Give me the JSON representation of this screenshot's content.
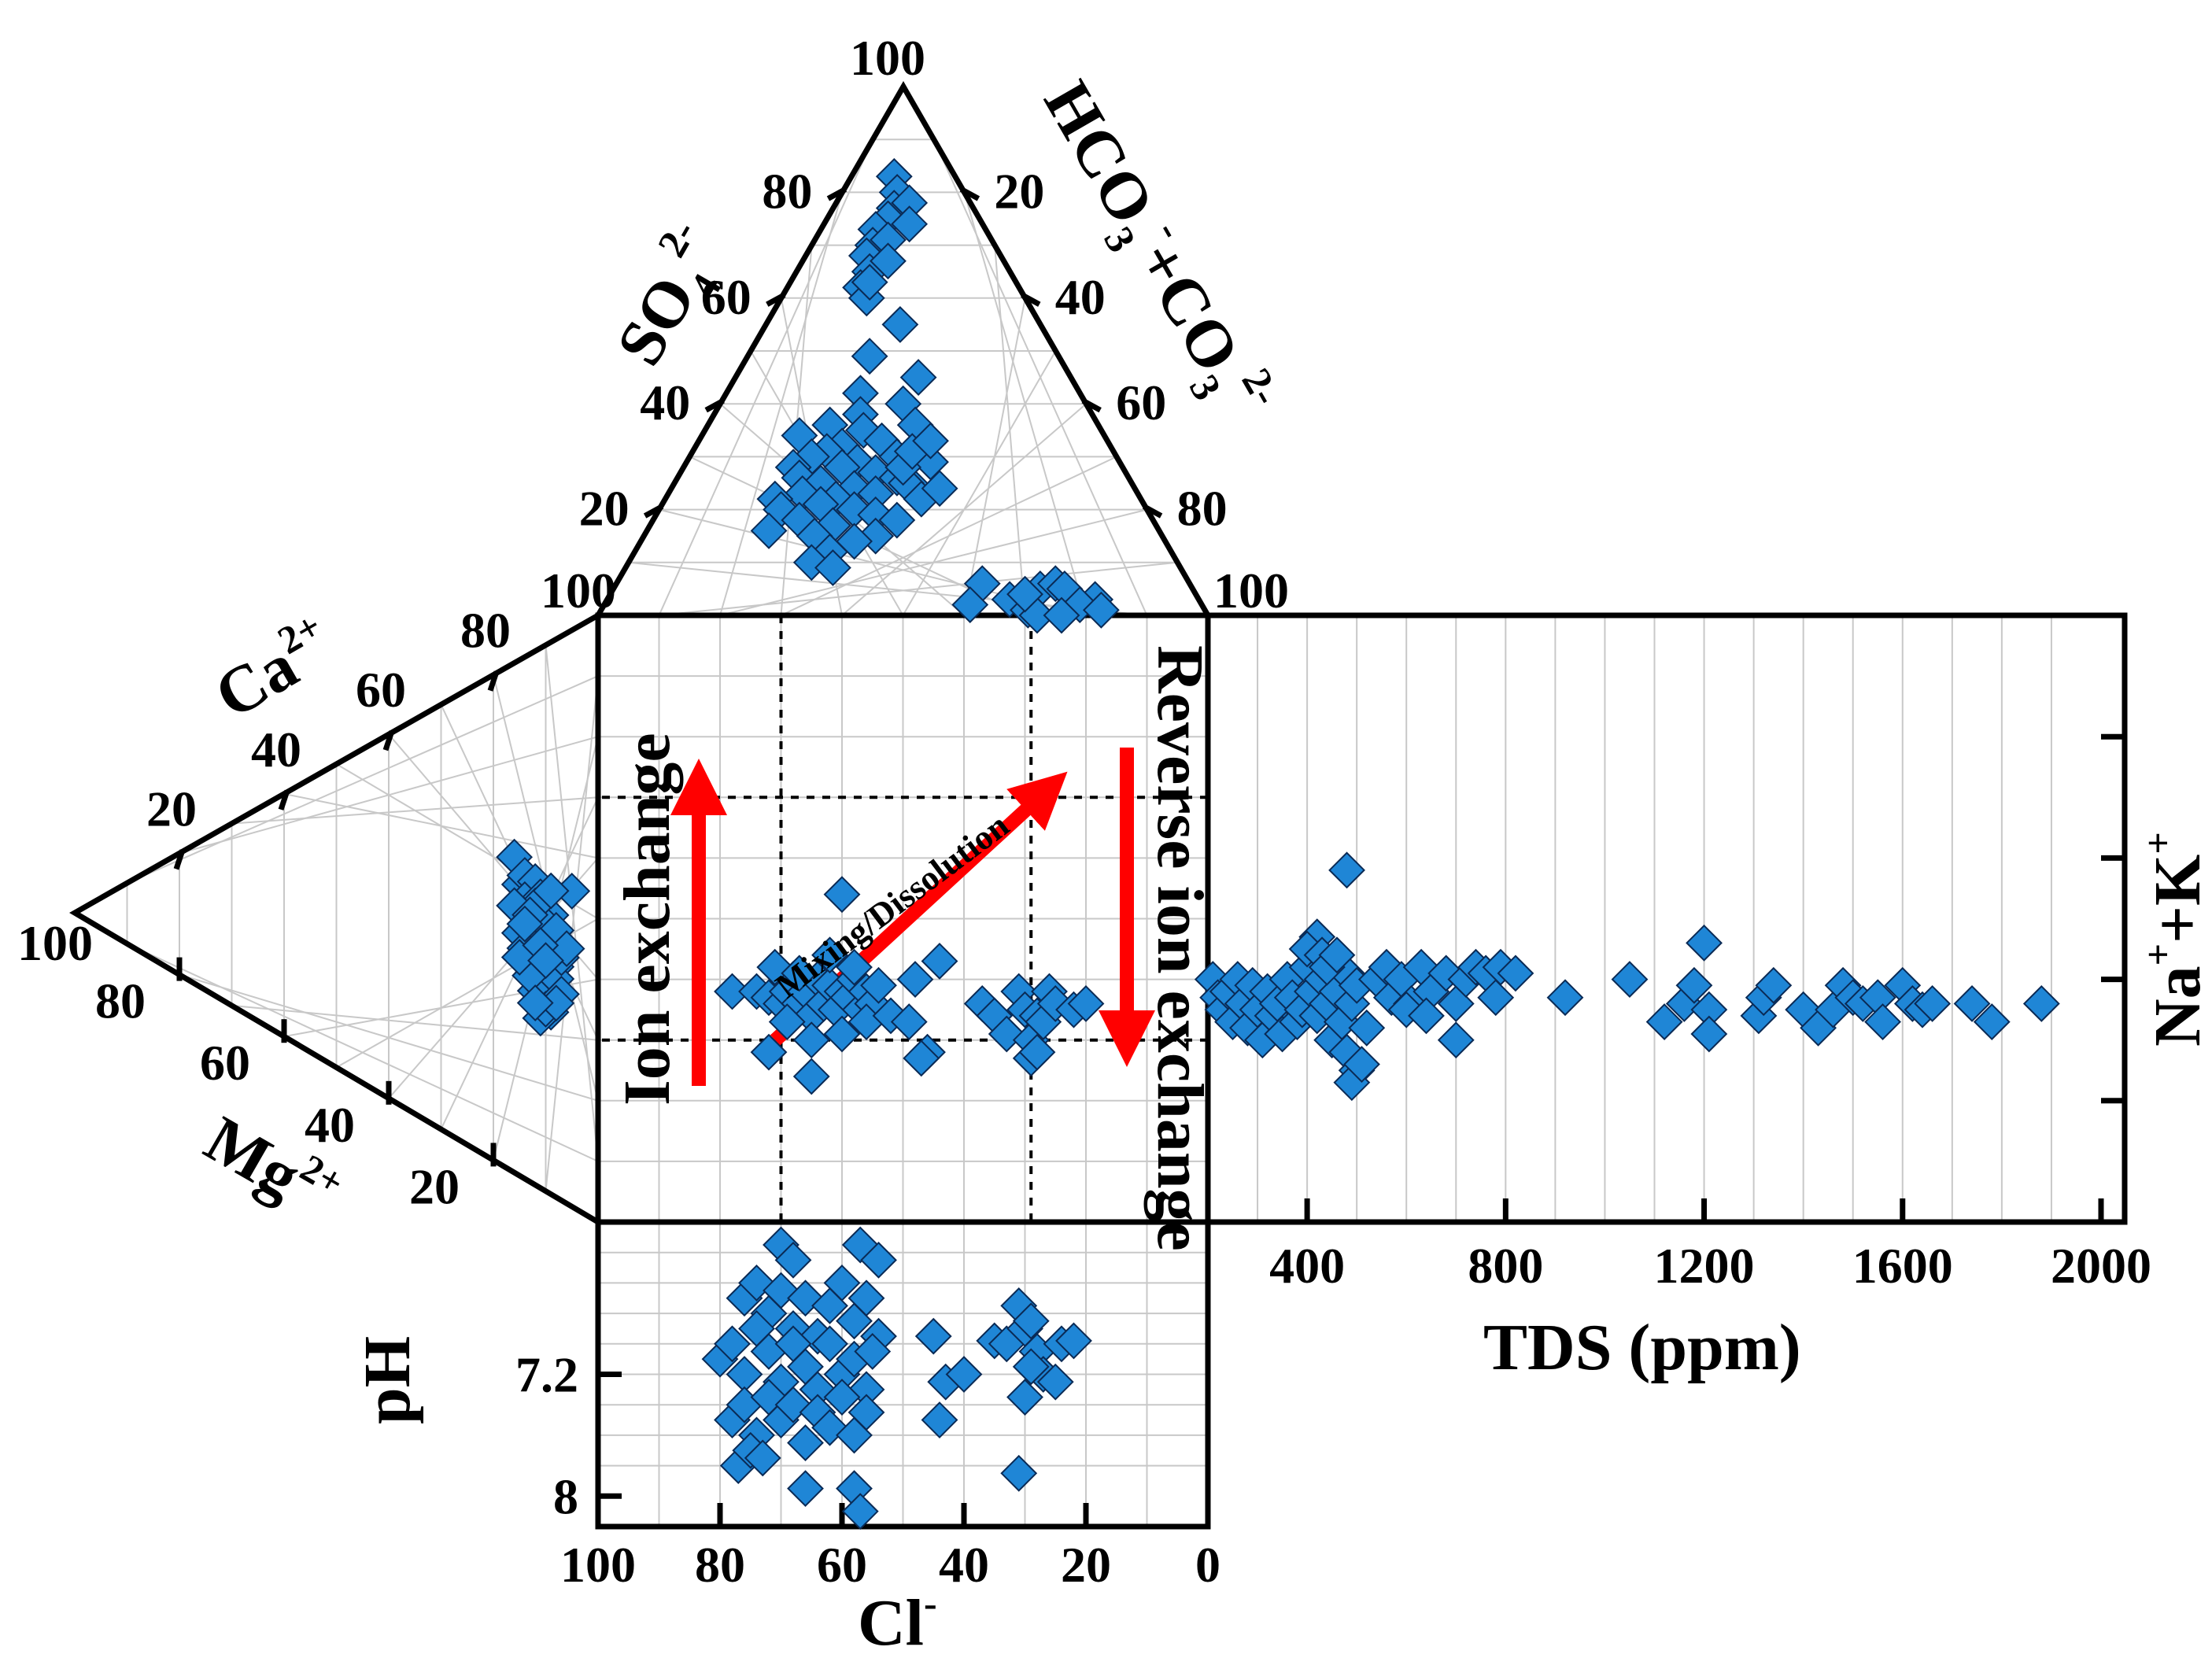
{
  "colors": {
    "marker_fill": "#1f86d6",
    "marker_stroke": "#0a2a55",
    "arrow": "#ff0000",
    "grid": "#c8c8c8"
  },
  "labels": {
    "so4": "SO",
    "so4_sub": "4",
    "so4_sup": "2-",
    "hco3": "HCO",
    "hco3_sub": "3",
    "hco3_sup": "-",
    "hco3_plus": "+CO",
    "co3_sub": "3",
    "co3_sup": "2-",
    "ca": "Ca",
    "ca_sup": "2+",
    "mg": "Mg",
    "mg_sup": "2+",
    "nak": "Na",
    "nak_sup1": "+",
    "nak_plus": "+K",
    "nak_sup2": "+",
    "cl": "Cl",
    "cl_sup": "-",
    "ph": "pH",
    "tds": "TDS (ppm)"
  },
  "annotations": {
    "ion_exchange": "Ion exchange",
    "mixing": "Mixing/Dissolution",
    "reverse": "Reverse ion exchange"
  },
  "chart_data": [
    {
      "type": "scatter",
      "panel": "anion-triangle",
      "axes": [
        "SO4 2-",
        "HCO3- + CO3 2-",
        "Cl-"
      ],
      "ticks": [
        "100",
        "80",
        "60",
        "40",
        "20",
        "20",
        "40",
        "60",
        "80",
        "100"
      ],
      "points_so4_hco3": [
        [
          83,
          7
        ],
        [
          80,
          9
        ],
        [
          77,
          10
        ],
        [
          75,
          10
        ],
        [
          73,
          9
        ],
        [
          70,
          10
        ],
        [
          68,
          10
        ],
        [
          65,
          12
        ],
        [
          62,
          12
        ],
        [
          60,
          14
        ],
        [
          78,
          12
        ],
        [
          74,
          14
        ],
        [
          71,
          12
        ],
        [
          67,
          14
        ],
        [
          63,
          13
        ],
        [
          55,
          22
        ],
        [
          49,
          20
        ],
        [
          45,
          30
        ],
        [
          42,
          22
        ],
        [
          40,
          30
        ],
        [
          38,
          24
        ],
        [
          36,
          20
        ],
        [
          36,
          34
        ],
        [
          35,
          26
        ],
        [
          34,
          16
        ],
        [
          33,
          30
        ],
        [
          32,
          24
        ],
        [
          31,
          22
        ],
        [
          30,
          20
        ],
        [
          30,
          34
        ],
        [
          29,
          28
        ],
        [
          29,
          40
        ],
        [
          28,
          18
        ],
        [
          28,
          26
        ],
        [
          27,
          32
        ],
        [
          26,
          20
        ],
        [
          26,
          36
        ],
        [
          25,
          24
        ],
        [
          24,
          30
        ],
        [
          24,
          40
        ],
        [
          23,
          22
        ],
        [
          23,
          34
        ],
        [
          22,
          18
        ],
        [
          22,
          28
        ],
        [
          21,
          26
        ],
        [
          20,
          20
        ],
        [
          20,
          32
        ],
        [
          19,
          36
        ],
        [
          18,
          24
        ],
        [
          18,
          40
        ],
        [
          17,
          30
        ],
        [
          16,
          20
        ],
        [
          15,
          28
        ],
        [
          15,
          38
        ],
        [
          14,
          35
        ],
        [
          12,
          32
        ],
        [
          10,
          30
        ],
        [
          9,
          34
        ],
        [
          25,
          38
        ],
        [
          22,
          42
        ],
        [
          24,
          44
        ],
        [
          28,
          36
        ],
        [
          31,
          36
        ],
        [
          33,
          38
        ],
        [
          6,
          60
        ],
        [
          5,
          70
        ],
        [
          6,
          72
        ],
        [
          3,
          66
        ],
        [
          2,
          60
        ],
        [
          1,
          70
        ],
        [
          0,
          72
        ],
        [
          3,
          80
        ],
        [
          5,
          74
        ],
        [
          4,
          68
        ],
        [
          2,
          78
        ],
        [
          1,
          82
        ],
        [
          0,
          76
        ]
      ]
    },
    {
      "type": "scatter",
      "panel": "cation-triangle",
      "axes": [
        "Ca 2+",
        "Mg 2+",
        "Na+ + K+"
      ],
      "ticks": [
        "80",
        "60",
        "40",
        "20",
        "100",
        "80",
        "60",
        "40",
        "20"
      ],
      "points_ca_mg": [
        [
          16,
          52
        ],
        [
          5,
          52
        ],
        [
          15,
          48
        ],
        [
          12,
          44
        ],
        [
          10,
          40
        ],
        [
          8,
          38
        ],
        [
          9,
          46
        ],
        [
          14,
          50
        ],
        [
          12,
          50
        ],
        [
          11,
          36
        ],
        [
          13,
          42
        ],
        [
          10,
          44
        ],
        [
          12,
          38
        ],
        [
          9,
          42
        ],
        [
          14,
          46
        ],
        [
          11,
          48
        ],
        [
          8,
          44
        ],
        [
          13,
          36
        ],
        [
          15,
          40
        ],
        [
          10,
          34
        ],
        [
          12,
          32
        ],
        [
          9,
          30
        ],
        [
          11,
          28
        ],
        [
          8,
          36
        ],
        [
          14,
          38
        ],
        [
          10,
          30
        ],
        [
          13,
          34
        ],
        [
          7,
          40
        ],
        [
          6,
          42
        ],
        [
          12,
          46
        ],
        [
          16,
          44
        ],
        [
          15,
          36
        ],
        [
          9,
          50
        ],
        [
          7,
          34
        ],
        [
          11,
          40
        ],
        [
          13,
          44
        ],
        [
          10,
          38
        ],
        [
          8,
          32
        ],
        [
          12,
          30
        ],
        [
          14,
          42
        ]
      ]
    },
    {
      "type": "scatter",
      "panel": "diamond",
      "x_axis": "Cl- (100 to 0)",
      "x_ticks": [
        "100",
        "80",
        "60",
        "40",
        "20",
        "0"
      ],
      "points_cl_nak": [
        [
          78,
          38
        ],
        [
          74,
          38
        ],
        [
          72,
          37
        ],
        [
          70,
          36
        ],
        [
          69,
          38
        ],
        [
          68,
          40
        ],
        [
          67,
          36
        ],
        [
          66,
          38
        ],
        [
          65,
          34
        ],
        [
          64,
          40
        ],
        [
          63,
          36
        ],
        [
          62,
          39
        ],
        [
          61,
          35
        ],
        [
          60,
          38
        ],
        [
          59,
          37
        ],
        [
          58,
          40
        ],
        [
          57,
          35
        ],
        [
          56,
          38
        ],
        [
          55,
          36
        ],
        [
          54,
          39
        ],
        [
          71,
          42
        ],
        [
          69,
          33
        ],
        [
          67,
          41
        ],
        [
          65,
          30
        ],
        [
          62,
          44
        ],
        [
          60,
          31
        ],
        [
          58,
          42
        ],
        [
          56,
          33
        ],
        [
          60,
          54
        ],
        [
          65,
          24
        ],
        [
          72,
          28
        ],
        [
          52,
          34
        ],
        [
          49,
          33
        ],
        [
          48,
          40
        ],
        [
          46,
          28
        ],
        [
          44,
          43
        ],
        [
          47,
          27
        ],
        [
          37,
          36
        ],
        [
          35,
          34
        ],
        [
          33,
          31
        ],
        [
          31,
          38
        ],
        [
          30,
          35
        ],
        [
          29,
          30
        ],
        [
          28,
          34
        ],
        [
          27,
          33
        ],
        [
          26,
          38
        ],
        [
          25,
          36
        ],
        [
          22,
          35
        ],
        [
          20,
          36
        ],
        [
          29,
          27
        ],
        [
          28,
          28
        ]
      ],
      "arrows": [
        "Ion exchange",
        "Mixing/Dissolution",
        "Reverse ion exchange"
      ]
    },
    {
      "type": "scatter",
      "panel": "tds-nak",
      "xlabel": "TDS (ppm)",
      "ylabel": "Na+ + K+",
      "x_ticks": [
        "400",
        "800",
        "1200",
        "1600",
        "2000"
      ],
      "xlim": [
        200,
        2000
      ],
      "points_tds_nak": [
        [
          210,
          40
        ],
        [
          220,
          37
        ],
        [
          230,
          35
        ],
        [
          240,
          38
        ],
        [
          250,
          33
        ],
        [
          260,
          40
        ],
        [
          270,
          36
        ],
        [
          280,
          32
        ],
        [
          290,
          39
        ],
        [
          300,
          35
        ],
        [
          310,
          30
        ],
        [
          320,
          38
        ],
        [
          330,
          34
        ],
        [
          340,
          36
        ],
        [
          350,
          31
        ],
        [
          360,
          40
        ],
        [
          370,
          37
        ],
        [
          380,
          33
        ],
        [
          390,
          35
        ],
        [
          400,
          42
        ],
        [
          410,
          38
        ],
        [
          420,
          34
        ],
        [
          430,
          40
        ],
        [
          440,
          36
        ],
        [
          450,
          30
        ],
        [
          460,
          38
        ],
        [
          470,
          33
        ],
        [
          480,
          41
        ],
        [
          490,
          36
        ],
        [
          500,
          39
        ],
        [
          420,
          47
        ],
        [
          400,
          45
        ],
        [
          430,
          44
        ],
        [
          440,
          42
        ],
        [
          460,
          44
        ],
        [
          480,
          58
        ],
        [
          480,
          28
        ],
        [
          500,
          25
        ],
        [
          490,
          23
        ],
        [
          510,
          26
        ],
        [
          520,
          32
        ],
        [
          540,
          40
        ],
        [
          560,
          42
        ],
        [
          570,
          37
        ],
        [
          590,
          40
        ],
        [
          610,
          36
        ],
        [
          630,
          42
        ],
        [
          650,
          38
        ],
        [
          680,
          41
        ],
        [
          700,
          36
        ],
        [
          720,
          40
        ],
        [
          740,
          42
        ],
        [
          760,
          41
        ],
        [
          790,
          42
        ],
        [
          820,
          41
        ],
        [
          600,
          35
        ],
        [
          640,
          34
        ],
        [
          700,
          30
        ],
        [
          780,
          37
        ],
        [
          920,
          37
        ],
        [
          1050,
          40
        ],
        [
          1160,
          36
        ],
        [
          1180,
          39
        ],
        [
          1200,
          46
        ],
        [
          1210,
          35
        ],
        [
          1120,
          33
        ],
        [
          1210,
          31
        ],
        [
          1310,
          34
        ],
        [
          1320,
          37
        ],
        [
          1340,
          39
        ],
        [
          1400,
          35
        ],
        [
          1430,
          32
        ],
        [
          1460,
          35
        ],
        [
          1480,
          39
        ],
        [
          1500,
          37
        ],
        [
          1520,
          36
        ],
        [
          1550,
          37
        ],
        [
          1560,
          33
        ],
        [
          1600,
          39
        ],
        [
          1620,
          36
        ],
        [
          1640,
          35
        ],
        [
          1660,
          36
        ],
        [
          1740,
          36
        ],
        [
          1780,
          33
        ],
        [
          1880,
          36
        ]
      ]
    },
    {
      "type": "scatter",
      "panel": "ph",
      "ylabel": "pH",
      "y_ticks": [
        "7.2",
        "8"
      ],
      "points_cl_ph": [
        [
          70,
          6.35
        ],
        [
          68,
          6.45
        ],
        [
          57,
          6.35
        ],
        [
          54,
          6.45
        ],
        [
          76,
          6.7
        ],
        [
          74,
          6.6
        ],
        [
          72,
          6.8
        ],
        [
          70,
          6.65
        ],
        [
          68,
          6.9
        ],
        [
          66,
          6.7
        ],
        [
          64,
          6.95
        ],
        [
          62,
          6.75
        ],
        [
          60,
          6.6
        ],
        [
          58,
          6.85
        ],
        [
          56,
          6.7
        ],
        [
          54,
          6.95
        ],
        [
          80,
          7.1
        ],
        [
          78,
          7.0
        ],
        [
          76,
          7.2
        ],
        [
          74,
          6.9
        ],
        [
          72,
          7.05
        ],
        [
          70,
          7.25
        ],
        [
          68,
          7.0
        ],
        [
          66,
          7.15
        ],
        [
          64,
          7.3
        ],
        [
          62,
          7.0
        ],
        [
          60,
          7.2
        ],
        [
          58,
          7.1
        ],
        [
          56,
          7.3
        ],
        [
          55,
          7.05
        ],
        [
          78,
          7.5
        ],
        [
          76,
          7.4
        ],
        [
          74,
          7.6
        ],
        [
          72,
          7.35
        ],
        [
          70,
          7.5
        ],
        [
          68,
          7.4
        ],
        [
          66,
          7.65
        ],
        [
          64,
          7.45
        ],
        [
          62,
          7.55
        ],
        [
          60,
          7.35
        ],
        [
          58,
          7.6
        ],
        [
          56,
          7.45
        ],
        [
          77,
          7.8
        ],
        [
          75,
          7.7
        ],
        [
          73,
          7.75
        ],
        [
          66,
          7.95
        ],
        [
          58,
          7.95
        ],
        [
          57,
          8.1
        ],
        [
          45,
          6.95
        ],
        [
          43,
          7.25
        ],
        [
          40,
          7.2
        ],
        [
          44,
          7.5
        ],
        [
          31,
          7.85
        ],
        [
          35,
          6.98
        ],
        [
          33,
          7.0
        ],
        [
          30,
          6.9
        ],
        [
          28,
          7.05
        ],
        [
          27,
          7.2
        ],
        [
          25,
          7.25
        ],
        [
          24,
          7.0
        ],
        [
          22,
          6.98
        ],
        [
          31,
          6.75
        ],
        [
          29,
          7.15
        ],
        [
          30,
          7.35
        ],
        [
          29,
          6.85
        ]
      ]
    }
  ]
}
